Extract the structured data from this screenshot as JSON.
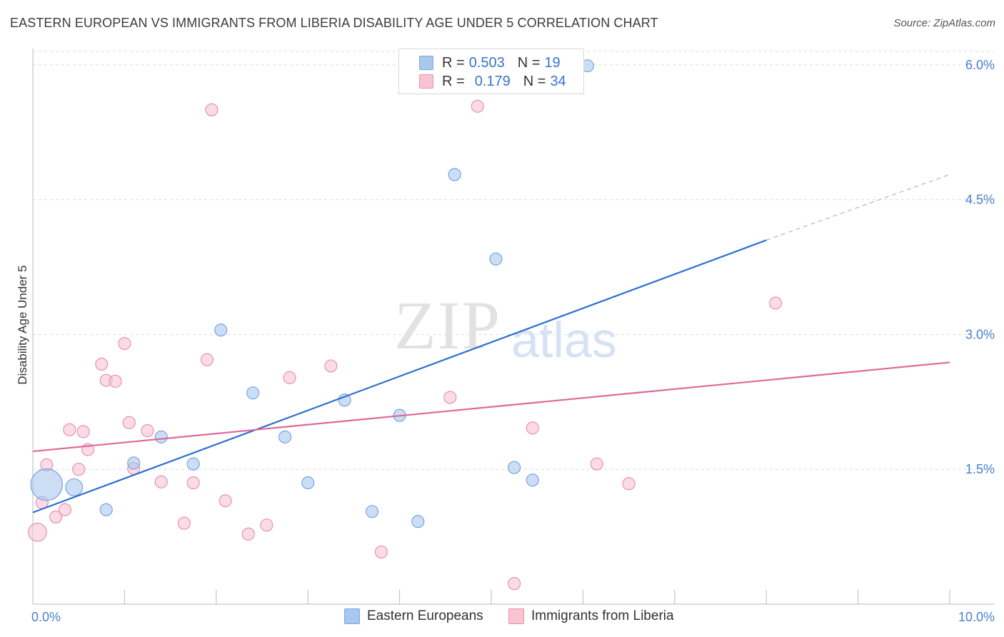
{
  "header": {
    "title": "EASTERN EUROPEAN VS IMMIGRANTS FROM LIBERIA DISABILITY AGE UNDER 5 CORRELATION CHART",
    "source": "Source: ZipAtlas.com"
  },
  "watermark": {
    "zip": "ZIP",
    "atlas": "atlas"
  },
  "legend": {
    "rows": [
      {
        "r_label": "R =",
        "r_value": "0.503",
        "n_label": "N =",
        "n_value": "19",
        "color": "#a9c8f0",
        "border": "#7aa6df"
      },
      {
        "r_label": "R =",
        "r_value": "0.179",
        "n_label": "N =",
        "n_value": "34",
        "color": "#f8c3d3",
        "border": "#e891ae"
      }
    ]
  },
  "bottom_legend": {
    "items": [
      {
        "label": "Eastern Europeans",
        "color": "#a9c8f0",
        "border": "#7aa6df"
      },
      {
        "label": "Immigrants from Liberia",
        "color": "#f8c3d3",
        "border": "#e891ae"
      }
    ]
  },
  "chart_data": {
    "type": "scatter",
    "title": "EASTERN EUROPEAN VS IMMIGRANTS FROM LIBERIA DISABILITY AGE UNDER 5 CORRELATION CHART",
    "xlabel": "",
    "ylabel": "Disability Age Under 5",
    "xlim": [
      0,
      10
    ],
    "ylim": [
      0,
      6.15
    ],
    "x_tick_labels": [
      {
        "value": 0,
        "label": "0.0%"
      },
      {
        "value": 10,
        "label": "10.0%"
      }
    ],
    "y_tick_labels": [
      {
        "value": 1.5,
        "label": "1.5%"
      },
      {
        "value": 3.0,
        "label": "3.0%"
      },
      {
        "value": 4.5,
        "label": "4.5%"
      },
      {
        "value": 6.0,
        "label": "6.0%"
      }
    ],
    "grid": true,
    "legend_position": "top-center",
    "series": [
      {
        "name": "Eastern Europeans",
        "color": "#a9c8f0",
        "border": "#6f9fdc",
        "trend_color": "#2e6fd0",
        "trend": {
          "x0": 0.0,
          "y0": 1.02,
          "x1": 8.0,
          "y1": 4.05,
          "dash_x1": 10.0,
          "dash_y1": 4.78
        },
        "points": [
          {
            "x": 0.15,
            "y": 1.33,
            "s": 2.6
          },
          {
            "x": 0.45,
            "y": 1.3,
            "s": 1.4
          },
          {
            "x": 0.8,
            "y": 1.05,
            "s": 1.0
          },
          {
            "x": 1.1,
            "y": 1.57,
            "s": 1.0
          },
          {
            "x": 1.4,
            "y": 1.86,
            "s": 1.0
          },
          {
            "x": 1.75,
            "y": 1.56,
            "s": 1.0
          },
          {
            "x": 2.05,
            "y": 3.05,
            "s": 1.0
          },
          {
            "x": 2.4,
            "y": 2.35,
            "s": 1.0
          },
          {
            "x": 2.75,
            "y": 1.86,
            "s": 1.0
          },
          {
            "x": 3.0,
            "y": 1.35,
            "s": 1.0
          },
          {
            "x": 3.4,
            "y": 2.27,
            "s": 1.0
          },
          {
            "x": 3.7,
            "y": 1.03,
            "s": 1.0
          },
          {
            "x": 4.0,
            "y": 2.1,
            "s": 1.0
          },
          {
            "x": 4.2,
            "y": 0.92,
            "s": 1.0
          },
          {
            "x": 4.6,
            "y": 4.78,
            "s": 1.0
          },
          {
            "x": 5.05,
            "y": 3.84,
            "s": 1.0
          },
          {
            "x": 5.25,
            "y": 1.52,
            "s": 1.0
          },
          {
            "x": 5.45,
            "y": 1.38,
            "s": 1.0
          },
          {
            "x": 6.05,
            "y": 5.99,
            "s": 1.0
          }
        ]
      },
      {
        "name": "Immigrants from Liberia",
        "color": "#f8c3d3",
        "border": "#e58aab",
        "trend_color": "#e0689a",
        "trend": {
          "x0": 0.0,
          "y0": 1.7,
          "x1": 10.0,
          "y1": 2.69
        },
        "points": [
          {
            "x": 0.05,
            "y": 0.8,
            "s": 1.5
          },
          {
            "x": 0.1,
            "y": 1.13,
            "s": 1.0
          },
          {
            "x": 0.15,
            "y": 1.55,
            "s": 1.0
          },
          {
            "x": 0.25,
            "y": 0.97,
            "s": 1.0
          },
          {
            "x": 0.35,
            "y": 1.05,
            "s": 1.0
          },
          {
            "x": 0.4,
            "y": 1.94,
            "s": 1.0
          },
          {
            "x": 0.5,
            "y": 1.5,
            "s": 1.0
          },
          {
            "x": 0.55,
            "y": 1.92,
            "s": 1.0
          },
          {
            "x": 0.6,
            "y": 1.72,
            "s": 1.0
          },
          {
            "x": 0.75,
            "y": 2.67,
            "s": 1.0
          },
          {
            "x": 0.8,
            "y": 2.49,
            "s": 1.0
          },
          {
            "x": 0.9,
            "y": 2.48,
            "s": 1.0
          },
          {
            "x": 1.0,
            "y": 2.9,
            "s": 1.0
          },
          {
            "x": 1.05,
            "y": 2.02,
            "s": 1.0
          },
          {
            "x": 1.1,
            "y": 1.51,
            "s": 1.0
          },
          {
            "x": 1.25,
            "y": 1.93,
            "s": 1.0
          },
          {
            "x": 1.4,
            "y": 1.36,
            "s": 1.0
          },
          {
            "x": 1.65,
            "y": 0.9,
            "s": 1.0
          },
          {
            "x": 1.75,
            "y": 1.35,
            "s": 1.0
          },
          {
            "x": 1.9,
            "y": 2.72,
            "s": 1.0
          },
          {
            "x": 1.95,
            "y": 5.5,
            "s": 1.0
          },
          {
            "x": 2.1,
            "y": 1.15,
            "s": 1.0
          },
          {
            "x": 2.35,
            "y": 0.78,
            "s": 1.0
          },
          {
            "x": 2.55,
            "y": 0.88,
            "s": 1.0
          },
          {
            "x": 2.8,
            "y": 2.52,
            "s": 1.0
          },
          {
            "x": 3.25,
            "y": 2.65,
            "s": 1.0
          },
          {
            "x": 3.8,
            "y": 0.58,
            "s": 1.0
          },
          {
            "x": 4.55,
            "y": 2.3,
            "s": 1.0
          },
          {
            "x": 4.85,
            "y": 5.54,
            "s": 1.0
          },
          {
            "x": 5.25,
            "y": 0.23,
            "s": 1.0
          },
          {
            "x": 5.45,
            "y": 1.96,
            "s": 1.0
          },
          {
            "x": 6.15,
            "y": 1.56,
            "s": 1.0
          },
          {
            "x": 6.5,
            "y": 1.34,
            "s": 1.0
          },
          {
            "x": 8.1,
            "y": 3.35,
            "s": 1.0
          }
        ]
      }
    ]
  }
}
